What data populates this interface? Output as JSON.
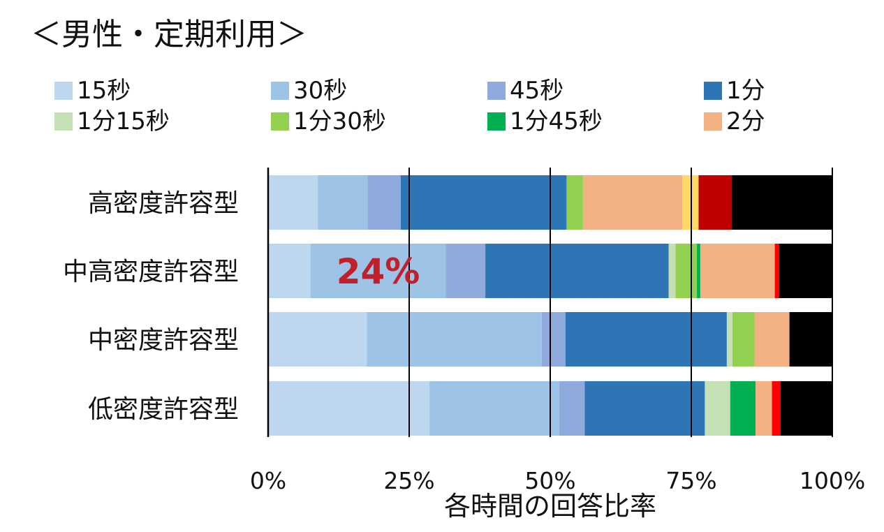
{
  "chart_data": {
    "type": "bar",
    "orientation": "horizontal",
    "stacked": "percent",
    "title": "＜男性・定期利用＞",
    "xlabel": "各時間の回答比率",
    "ylabel": "",
    "xlim": [
      0,
      100
    ],
    "x_ticks": [
      "0%",
      "25%",
      "50%",
      "75%",
      "100%"
    ],
    "grid": "vertical",
    "legend_position": "top",
    "categories": [
      "高密度許容型",
      "中高密度許容型",
      "中密度許容型",
      "低密度許容型"
    ],
    "series": [
      {
        "name": "15秒",
        "color": "#bdd7ee",
        "values": [
          8.8,
          7.5,
          17.5,
          28.6
        ]
      },
      {
        "name": "30秒",
        "color": "#9dc3e6",
        "values": [
          8.8,
          24.0,
          31.0,
          23.0
        ]
      },
      {
        "name": "45秒",
        "color": "#8faadc",
        "values": [
          5.9,
          7.0,
          4.2,
          4.5
        ]
      },
      {
        "name": "1分",
        "color": "#2e75b6",
        "values": [
          29.4,
          32.5,
          28.6,
          21.3
        ]
      },
      {
        "name": "1分15秒",
        "color": "#c5e0b4",
        "values": [
          0,
          1.2,
          1.0,
          4.5
        ]
      },
      {
        "name": "1分30秒",
        "color": "#92d050",
        "values": [
          2.9,
          3.8,
          3.9,
          0
        ]
      },
      {
        "name": "1分45秒",
        "color": "#00b050",
        "values": [
          0,
          0.6,
          0,
          4.5
        ]
      },
      {
        "name": "2分",
        "color": "#f4b183",
        "values": [
          17.6,
          13.2,
          6.2,
          2.9
        ]
      },
      {
        "name": "",
        "color": "#ffd966",
        "values": [
          2.9,
          0,
          0,
          0
        ]
      },
      {
        "name": "",
        "color": "#c00000",
        "values": [
          5.9,
          0,
          0,
          0
        ]
      },
      {
        "name": "",
        "color": "#ff0000",
        "values": [
          0,
          0.8,
          0,
          1.5
        ]
      },
      {
        "name": "",
        "color": "#000000",
        "values": [
          17.8,
          9.4,
          7.6,
          9.2
        ]
      }
    ],
    "annotations": [
      {
        "text": "24%",
        "category": "中高密度許容型",
        "series": "30秒",
        "color": "#c0202a"
      }
    ]
  }
}
